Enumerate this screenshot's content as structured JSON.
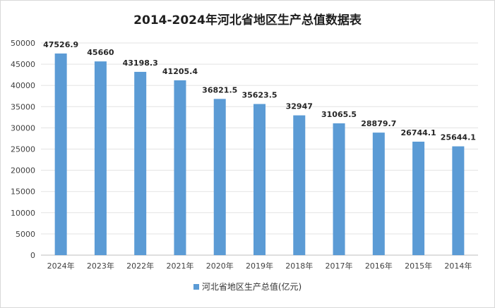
{
  "chart_data": {
    "type": "bar",
    "title": "2014-2024年河北省地区生产总值数据表",
    "categories": [
      "2024年",
      "2023年",
      "2022年",
      "2021年",
      "2020年",
      "2019年",
      "2018年",
      "2017年",
      "2016年",
      "2015年",
      "2014年"
    ],
    "series": [
      {
        "name": "河北省地区生产总值(亿元)",
        "values": [
          47526.9,
          45660,
          43198.3,
          41205.4,
          36821.5,
          35623.5,
          32947,
          31065.5,
          28879.7,
          26744.1,
          25644.1
        ],
        "value_labels": [
          "47526.9",
          "45660",
          "43198.3",
          "41205.4",
          "36821.5",
          "35623.5",
          "32947",
          "31065.5",
          "28879.7",
          "26744.1",
          "25644.1"
        ]
      }
    ],
    "ylim": [
      0,
      50000
    ],
    "yticks": [
      0,
      5000,
      10000,
      15000,
      20000,
      25000,
      30000,
      35000,
      40000,
      45000,
      50000
    ],
    "grid": true,
    "legend_position": "bottom",
    "bar_color": "#5b9bd5"
  }
}
